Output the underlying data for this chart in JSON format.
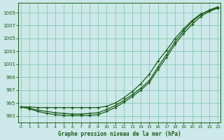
{
  "title": "Graphe pression niveau de la mer (hPa)",
  "background_color": "#cce8e8",
  "grid_color": "#88c8b8",
  "line_color": "#1a5c1a",
  "x_ticks": [
    0,
    1,
    2,
    3,
    4,
    5,
    6,
    7,
    8,
    9,
    10,
    11,
    12,
    13,
    14,
    15,
    16,
    17,
    18,
    19,
    20,
    21,
    22,
    23
  ],
  "y_ticks": [
    993,
    995,
    997,
    999,
    1001,
    1003,
    1005,
    1007,
    1009
  ],
  "ylim": [
    992.0,
    1010.5
  ],
  "xlim": [
    -0.3,
    23.3
  ],
  "line_flat": [
    994.4,
    994.4,
    994.3,
    994.3,
    994.3,
    994.3,
    994.3,
    994.3,
    994.3,
    994.3,
    994.5,
    995.0,
    995.8,
    996.8,
    998.0,
    999.5,
    1001.5,
    1003.2,
    1005.0,
    1006.5,
    1007.8,
    1008.8,
    1009.3,
    1009.8
  ],
  "line_mid": [
    994.4,
    994.2,
    993.9,
    993.7,
    993.5,
    993.4,
    993.3,
    993.3,
    993.4,
    993.5,
    994.0,
    994.6,
    995.4,
    996.3,
    997.3,
    998.5,
    1000.6,
    1002.5,
    1004.5,
    1006.2,
    1007.6,
    1008.7,
    1009.4,
    1009.9
  ],
  "line_low": [
    994.4,
    994.1,
    993.7,
    993.4,
    993.2,
    993.1,
    993.1,
    993.1,
    993.1,
    993.2,
    993.7,
    994.3,
    995.1,
    996.0,
    997.0,
    998.2,
    1000.2,
    1002.1,
    1004.1,
    1005.8,
    1007.2,
    1008.4,
    1009.2,
    1009.7
  ]
}
